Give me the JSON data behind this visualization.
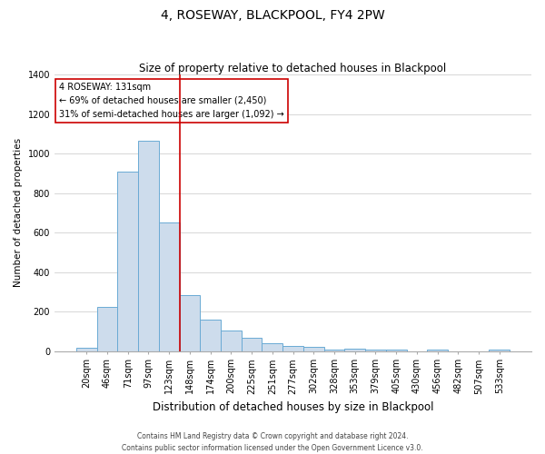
{
  "title": "4, ROSEWAY, BLACKPOOL, FY4 2PW",
  "subtitle": "Size of property relative to detached houses in Blackpool",
  "xlabel": "Distribution of detached houses by size in Blackpool",
  "ylabel": "Number of detached properties",
  "bar_labels": [
    "20sqm",
    "46sqm",
    "71sqm",
    "97sqm",
    "123sqm",
    "148sqm",
    "174sqm",
    "200sqm",
    "225sqm",
    "251sqm",
    "277sqm",
    "302sqm",
    "328sqm",
    "353sqm",
    "379sqm",
    "405sqm",
    "430sqm",
    "456sqm",
    "482sqm",
    "507sqm",
    "533sqm"
  ],
  "bar_values": [
    15,
    225,
    910,
    1065,
    650,
    285,
    157,
    105,
    68,
    40,
    25,
    20,
    8,
    12,
    5,
    5,
    0,
    5,
    0,
    0,
    5
  ],
  "bar_color": "#cddcec",
  "bar_edge_color": "#6aaad4",
  "vline_color": "#cc0000",
  "ylim": [
    0,
    1400
  ],
  "yticks": [
    0,
    200,
    400,
    600,
    800,
    1000,
    1200,
    1400
  ],
  "annotation_title": "4 ROSEWAY: 131sqm",
  "annotation_line1": "← 69% of detached houses are smaller (2,450)",
  "annotation_line2": "31% of semi-detached houses are larger (1,092) →",
  "annotation_box_color": "#ffffff",
  "annotation_box_edge": "#cc0000",
  "footer_line1": "Contains HM Land Registry data © Crown copyright and database right 2024.",
  "footer_line2": "Contains public sector information licensed under the Open Government Licence v3.0.",
  "background_color": "#ffffff",
  "grid_color": "#d0d0d0",
  "title_fontsize": 10,
  "subtitle_fontsize": 8.5,
  "xlabel_fontsize": 8.5,
  "ylabel_fontsize": 7.5,
  "tick_fontsize": 7,
  "annotation_fontsize": 7,
  "footer_fontsize": 5.5
}
